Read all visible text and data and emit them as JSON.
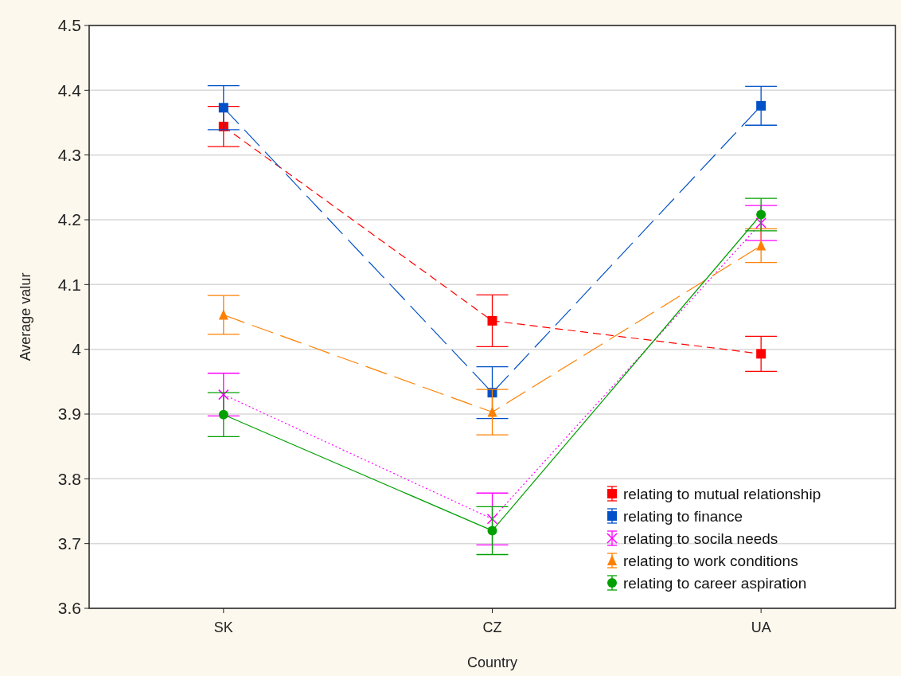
{
  "chart_data": {
    "type": "line",
    "xlabel": "Country",
    "ylabel": "Average valur",
    "categories": [
      "SK",
      "CZ",
      "UA"
    ],
    "ylim": [
      3.6,
      4.5
    ],
    "yticks": [
      3.6,
      3.7,
      3.8,
      3.9,
      4,
      4.1,
      4.2,
      4.3,
      4.4,
      4.5
    ],
    "grid": "y",
    "legend": "bottom right",
    "series": [
      {
        "name": "relating to mutual relationship",
        "color": "#ff0000",
        "values": [
          4.344,
          4.044,
          3.993
        ],
        "errors": [
          0.031,
          0.04,
          0.027
        ],
        "marker": "square",
        "line_style": "dashed"
      },
      {
        "name": "relating to finance",
        "color": "#0050c8",
        "values": [
          4.373,
          3.933,
          4.376
        ],
        "errors": [
          0.034,
          0.04,
          0.03
        ],
        "marker": "square",
        "line_style": "dashed"
      },
      {
        "name": "relating to socila needs",
        "color": "#ff00ff",
        "values": [
          3.93,
          3.738,
          4.195
        ],
        "errors": [
          0.033,
          0.04,
          0.027
        ],
        "marker": "cross",
        "line_style": "dotted"
      },
      {
        "name": "relating to work conditions",
        "color": "#ff8000",
        "values": [
          4.053,
          3.903,
          4.16
        ],
        "errors": [
          0.03,
          0.035,
          0.026
        ],
        "marker": "triangle",
        "line_style": "dashed"
      },
      {
        "name": "relating to career aspiration",
        "color": "#00a000",
        "values": [
          3.899,
          3.72,
          4.208
        ],
        "errors": [
          0.034,
          0.037,
          0.025
        ],
        "marker": "circle",
        "line_style": "solid"
      }
    ]
  }
}
